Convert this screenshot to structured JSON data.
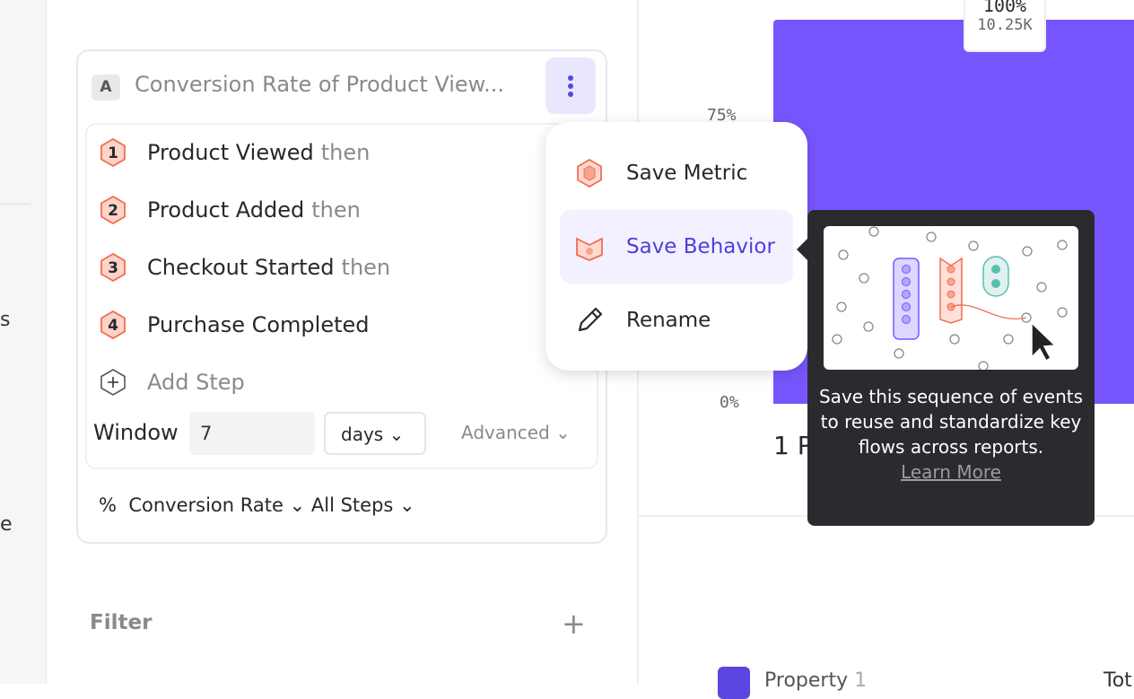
{
  "sidebar": {
    "fragments": [
      "s",
      "e"
    ]
  },
  "metric": {
    "badge": "A",
    "title": "Conversion Rate of Product View...",
    "steps": [
      {
        "num": "1",
        "name": "Product Viewed",
        "suffix": "then"
      },
      {
        "num": "2",
        "name": "Product Added",
        "suffix": "then"
      },
      {
        "num": "3",
        "name": "Checkout Started",
        "suffix": "then"
      },
      {
        "num": "4",
        "name": "Purchase Completed",
        "suffix": ""
      }
    ],
    "add_step": "Add Step",
    "window_label": "Window",
    "window_value": "7",
    "window_unit": "days",
    "advanced": "Advanced",
    "measure_icon": "%",
    "measure": "Conversion Rate",
    "steps_scope": "All Steps"
  },
  "filter": {
    "label": "Filter"
  },
  "menu": {
    "items": [
      {
        "label": "Save Metric",
        "icon": "metric-hex-icon"
      },
      {
        "label": "Save Behavior",
        "icon": "behavior-icon",
        "active": true
      },
      {
        "label": "Rename",
        "icon": "pencil-icon"
      }
    ]
  },
  "tooltip": {
    "text": "Save this sequence of events to reuse and standardize key flows across reports.",
    "link": "Learn More"
  },
  "chart_data": {
    "type": "bar",
    "y_ticks": [
      "75%",
      "0%"
    ],
    "ylim": [
      0,
      100
    ],
    "categories": [
      "1 P"
    ],
    "values": [
      100
    ],
    "data_labels": [
      {
        "pct": "100%",
        "count": "10.25K"
      }
    ],
    "color": "#7856ff"
  },
  "table": {
    "header_property": "Property",
    "header_property_count": "1",
    "header_total": "Tot"
  },
  "colors": {
    "accent": "#5a46e0",
    "step": "#f36d4f",
    "bar": "#7856ff"
  }
}
